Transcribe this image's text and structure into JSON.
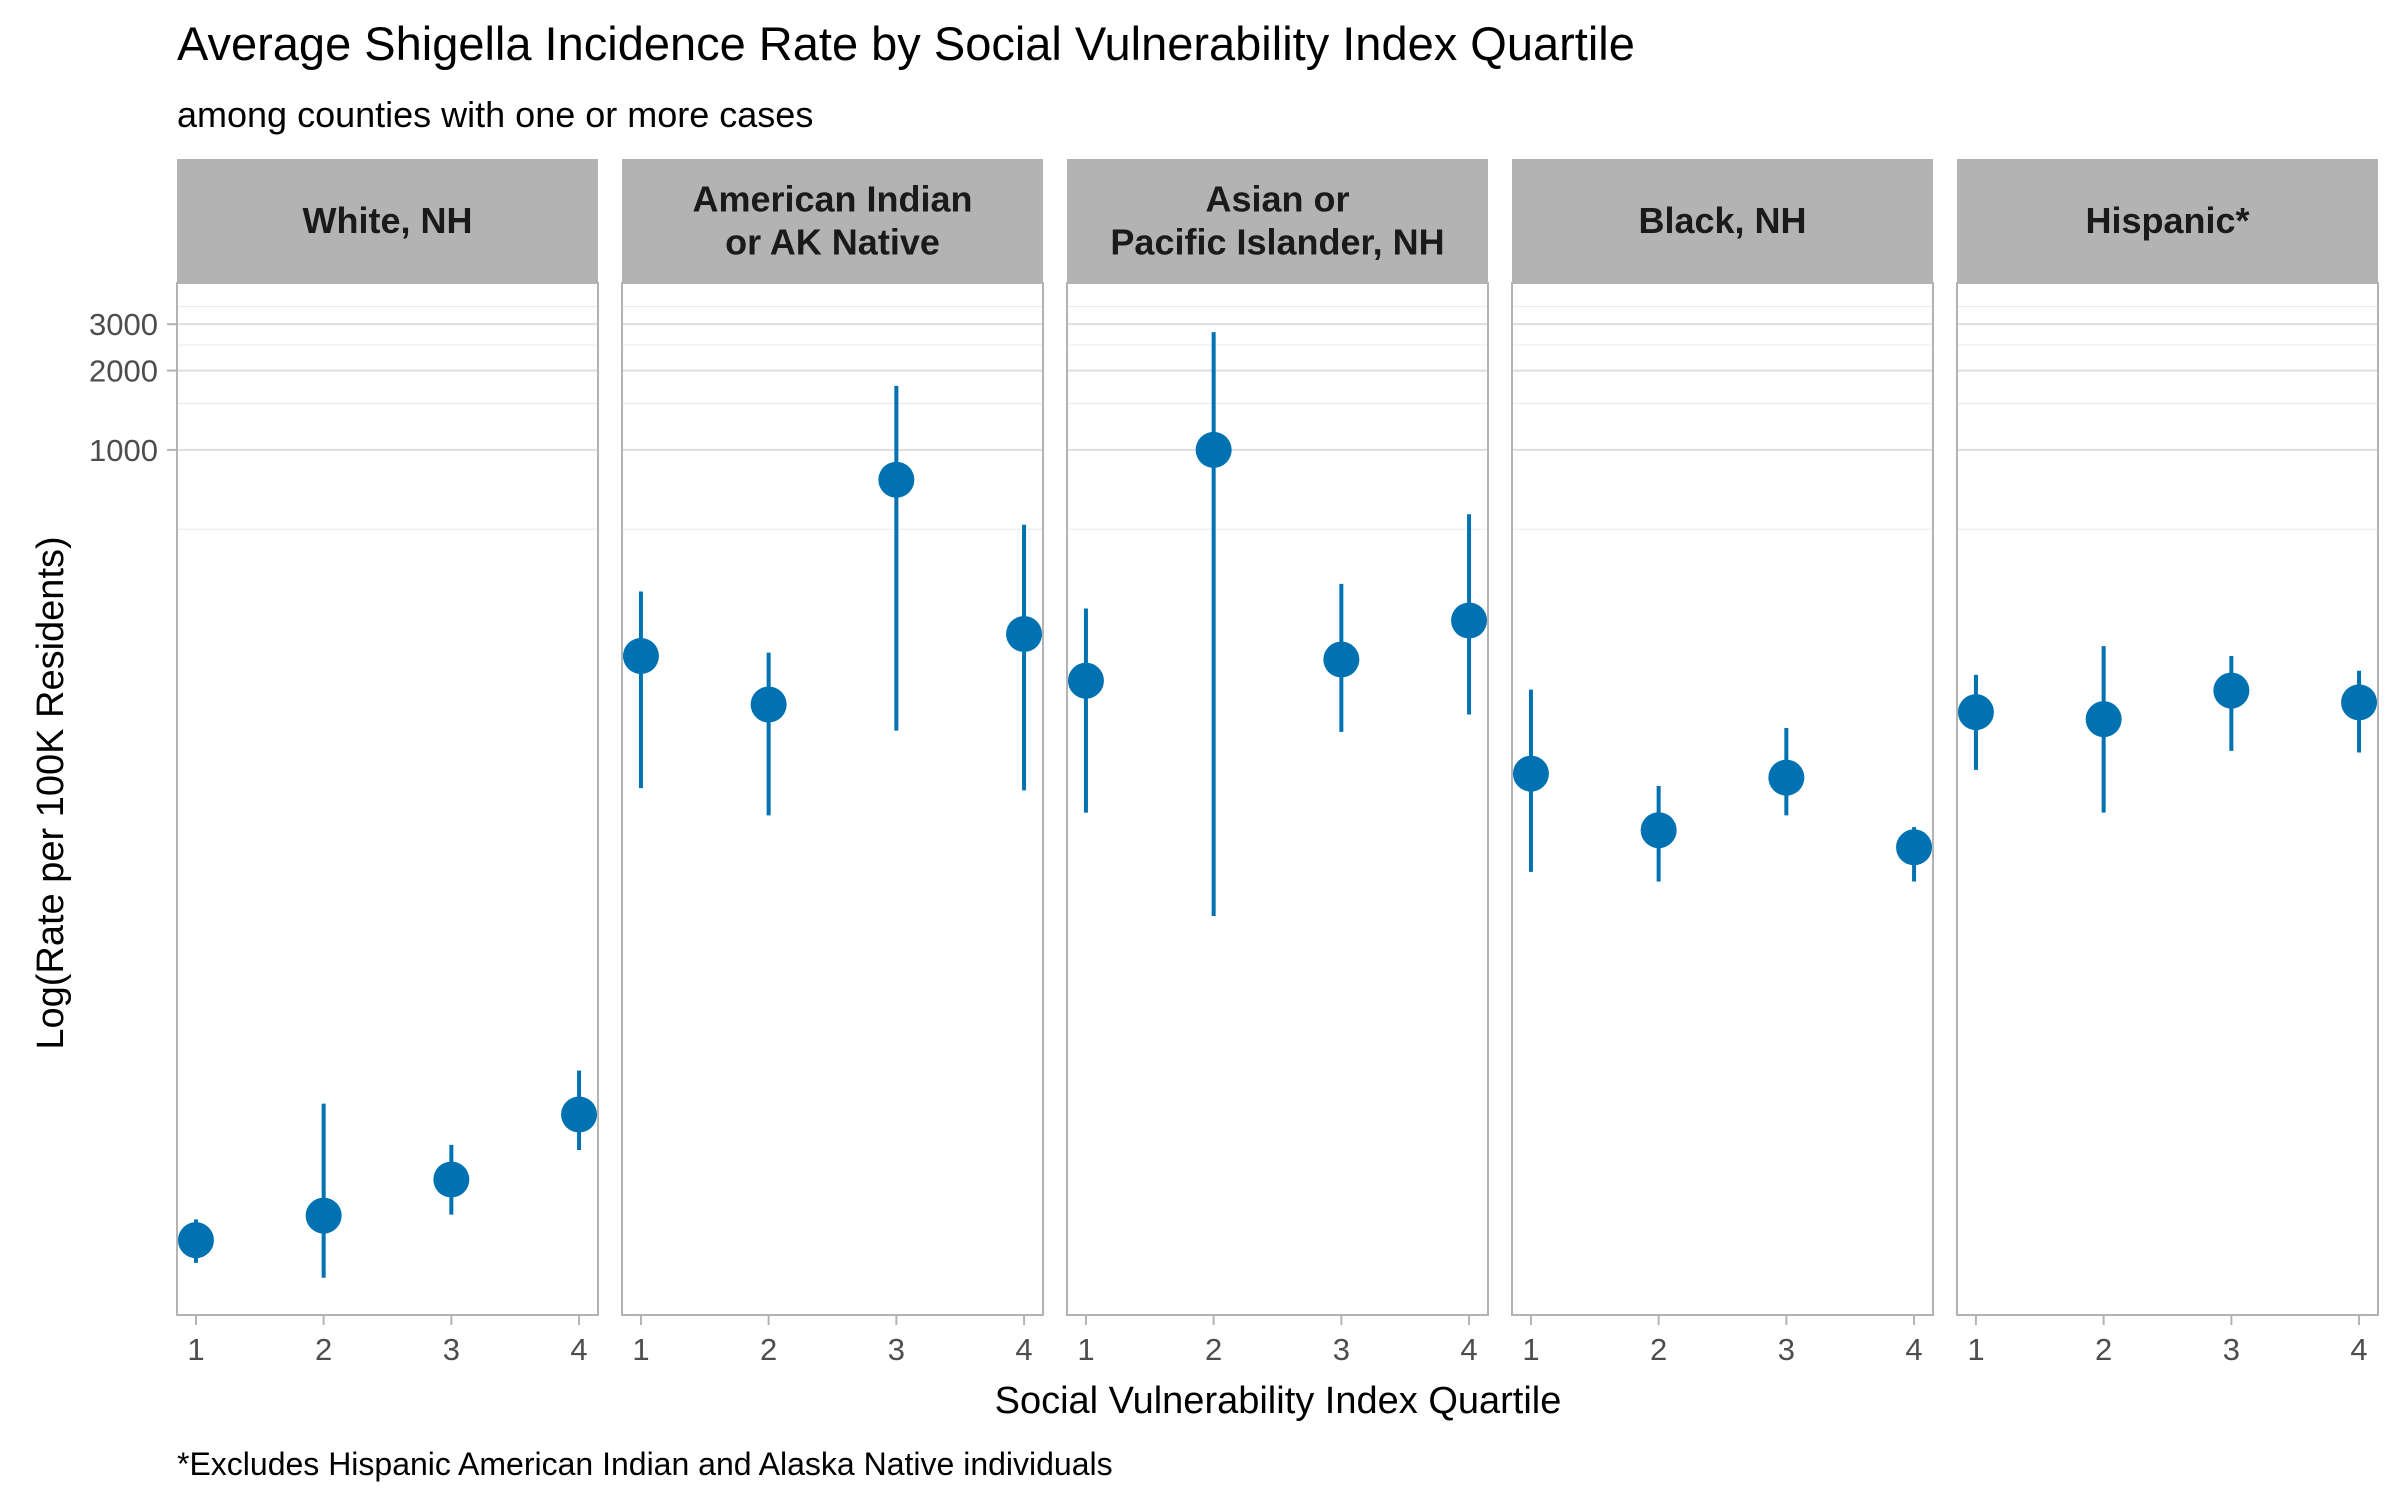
{
  "chart_data": {
    "type": "scatter",
    "title": "Average Shigella Incidence Rate by Social Vulnerability Index Quartile",
    "subtitle": "among counties with one or more cases",
    "caption": "*Excludes Hispanic American Indian and Alaska Native individuals",
    "xlabel": "Social Vulnerability Index Quartile",
    "ylabel": "Log(Rate per 100K Residents)",
    "y_scale": "log10",
    "ylim": [
      0.52,
      4300
    ],
    "y_ticks": [
      1000,
      2000,
      3000
    ],
    "y_tick_labels": [
      "1000",
      "2000",
      "3000"
    ],
    "x_categories": [
      "1",
      "2",
      "3",
      "4"
    ],
    "grid": true,
    "color": "#0072B2",
    "panels": [
      {
        "name": "White, NH",
        "points": [
          {
            "x": "1",
            "y": 1.0,
            "lower": 0.82,
            "upper": 1.2
          },
          {
            "x": "2",
            "y": 1.24,
            "lower": 0.72,
            "upper": 3.3
          },
          {
            "x": "3",
            "y": 1.7,
            "lower": 1.25,
            "upper": 2.3
          },
          {
            "x": "4",
            "y": 3.0,
            "lower": 2.2,
            "upper": 4.4
          }
        ]
      },
      {
        "name": "American Indian\nor AK Native",
        "points": [
          {
            "x": "1",
            "y": 165,
            "lower": 52,
            "upper": 290
          },
          {
            "x": "2",
            "y": 108,
            "lower": 41,
            "upper": 170
          },
          {
            "x": "3",
            "y": 770,
            "lower": 86,
            "upper": 1750
          },
          {
            "x": "4",
            "y": 200,
            "lower": 51,
            "upper": 520
          }
        ]
      },
      {
        "name": "Asian or\nPacific Islander, NH",
        "points": [
          {
            "x": "1",
            "y": 133,
            "lower": 42,
            "upper": 250
          },
          {
            "x": "2",
            "y": 1000,
            "lower": 17,
            "upper": 2800
          },
          {
            "x": "3",
            "y": 160,
            "lower": 85,
            "upper": 310
          },
          {
            "x": "4",
            "y": 225,
            "lower": 99,
            "upper": 570
          }
        ]
      },
      {
        "name": "Black, NH",
        "points": [
          {
            "x": "1",
            "y": 59,
            "lower": 25,
            "upper": 123
          },
          {
            "x": "2",
            "y": 36,
            "lower": 23,
            "upper": 53
          },
          {
            "x": "3",
            "y": 57,
            "lower": 41,
            "upper": 88
          },
          {
            "x": "4",
            "y": 31,
            "lower": 23,
            "upper": 37
          }
        ]
      },
      {
        "name": "Hispanic*",
        "points": [
          {
            "x": "1",
            "y": 101,
            "lower": 61,
            "upper": 140
          },
          {
            "x": "2",
            "y": 95,
            "lower": 42,
            "upper": 180
          },
          {
            "x": "3",
            "y": 122,
            "lower": 72,
            "upper": 165
          },
          {
            "x": "4",
            "y": 110,
            "lower": 71,
            "upper": 145
          }
        ]
      }
    ]
  }
}
